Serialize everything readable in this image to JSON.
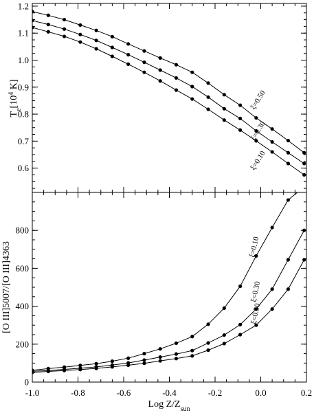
{
  "chart_data": [
    {
      "type": "line",
      "panel": "top",
      "ylabel": "T",
      "ylabel_sub": "e",
      "ylabel_unit_prefix": "[10",
      "ylabel_unit_sup": "4",
      "ylabel_unit_suffix": " K]",
      "xlim": [
        -1.0,
        0.2
      ],
      "ylim": [
        0.51,
        1.21
      ],
      "yticks": [
        0.6,
        0.7,
        0.8,
        0.9,
        1.0,
        1.1,
        1.2
      ],
      "ytick_labels": [
        "0.6",
        "0.7",
        "0.8",
        "0.9",
        "1.0",
        "1.1",
        "1.2"
      ],
      "x": [
        -1.0,
        -0.93,
        -0.86,
        -0.79,
        -0.72,
        -0.65,
        -0.58,
        -0.51,
        -0.44,
        -0.37,
        -0.3,
        -0.23,
        -0.16,
        -0.09,
        -0.02,
        0.05,
        0.12,
        0.19
      ],
      "series": [
        {
          "label_symbol": "ξ",
          "label_value": "=0.50",
          "values": [
            1.18,
            1.166,
            1.15,
            1.13,
            1.11,
            1.087,
            1.06,
            1.034,
            1.008,
            0.983,
            0.955,
            0.915,
            0.872,
            0.833,
            0.786,
            0.745,
            0.702,
            0.657
          ]
        },
        {
          "label_symbol": "ξ",
          "label_value": "=0.30",
          "values": [
            1.147,
            1.132,
            1.115,
            1.095,
            1.073,
            1.047,
            1.02,
            0.992,
            0.963,
            0.934,
            0.902,
            0.863,
            0.82,
            0.784,
            0.738,
            0.697,
            0.657,
            0.617
          ]
        },
        {
          "label_symbol": "ξ",
          "label_value": "=0.10",
          "values": [
            1.121,
            1.105,
            1.088,
            1.067,
            1.042,
            1.014,
            0.985,
            0.955,
            0.923,
            0.889,
            0.856,
            0.818,
            0.778,
            0.741,
            0.701,
            0.66,
            0.617,
            0.575
          ]
        }
      ]
    },
    {
      "type": "line",
      "panel": "bottom",
      "ylabel": "[O III]5007/[O III]4363",
      "xlabel": "Log Z/Z",
      "xlabel_sub": "sun",
      "xlim": [
        -1.0,
        0.2
      ],
      "ylim": [
        0,
        1000
      ],
      "yticks": [
        0,
        200,
        400,
        600,
        800
      ],
      "ytick_labels": [
        "0",
        "200",
        "400",
        "600",
        "800"
      ],
      "xticks": [
        -1.0,
        -0.8,
        -0.6,
        -0.4,
        -0.2,
        0.0,
        0.2
      ],
      "xtick_labels": [
        "-1.0",
        "-0.8",
        "-0.6",
        "-0.4",
        "-0.2",
        "0.0",
        "0.2"
      ],
      "x": [
        -1.0,
        -0.93,
        -0.86,
        -0.79,
        -0.72,
        -0.65,
        -0.58,
        -0.51,
        -0.44,
        -0.37,
        -0.3,
        -0.23,
        -0.16,
        -0.09,
        -0.02,
        0.05,
        0.12,
        0.19
      ],
      "series": [
        {
          "label_symbol": "ξ",
          "label_value": "=0.10",
          "values": [
            62,
            71,
            79,
            88,
            97,
            110,
            126,
            150,
            175,
            205,
            240,
            305,
            390,
            505,
            665,
            815,
            960,
            1030
          ]
        },
        {
          "label_symbol": "ξ",
          "label_value": "=0.30",
          "values": [
            57,
            61,
            67,
            73,
            80,
            90,
            101,
            116,
            132,
            148,
            166,
            206,
            248,
            303,
            385,
            490,
            645,
            800
          ]
        },
        {
          "label_symbol": "ξ",
          "label_value": "=0.50",
          "values": [
            51,
            56,
            61,
            66,
            72,
            80,
            89,
            99,
            112,
            124,
            138,
            168,
            203,
            250,
            300,
            385,
            490,
            645
          ]
        }
      ]
    }
  ]
}
